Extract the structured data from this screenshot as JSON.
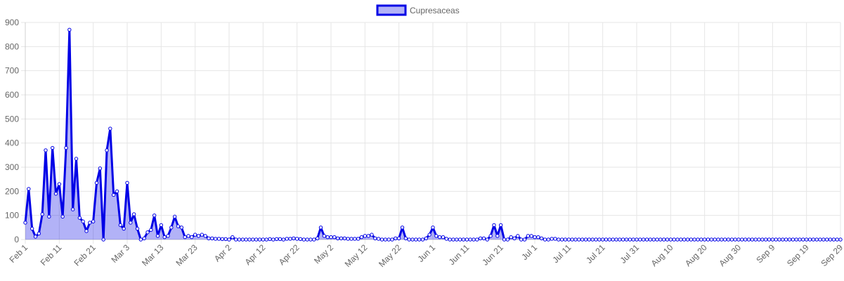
{
  "chart_data": {
    "type": "area",
    "title": "",
    "xlabel": "",
    "ylabel": "",
    "ylim": [
      0,
      900
    ],
    "yticks": [
      0,
      100,
      200,
      300,
      400,
      500,
      600,
      700,
      800,
      900
    ],
    "xtick_labels": [
      "Feb 1",
      "Feb 11",
      "Feb 21",
      "Mar 3",
      "Mar 13",
      "Mar 23",
      "Apr 2",
      "Apr 12",
      "Apr 22",
      "May 2",
      "May 12",
      "May 22",
      "Jun 1",
      "Jun 11",
      "Jun 21",
      "Jul 1",
      "Jul 11",
      "Jul 21",
      "Jul 31",
      "Aug 10",
      "Aug 20",
      "Aug 30",
      "Sep 9",
      "Sep 19",
      "Sep 29"
    ],
    "x_start": "Feb 1",
    "x_end": "Sep 29",
    "grid": true,
    "legend_position": "top",
    "series": [
      {
        "name": "Cupresaceas",
        "color": "#0000e6",
        "fill": "rgba(0,0,230,0.3)",
        "values": [
          70,
          210,
          45,
          12,
          25,
          105,
          370,
          95,
          380,
          190,
          230,
          95,
          380,
          870,
          125,
          335,
          90,
          75,
          35,
          70,
          75,
          235,
          295,
          0,
          370,
          460,
          185,
          200,
          60,
          45,
          235,
          70,
          105,
          45,
          0,
          5,
          30,
          40,
          100,
          15,
          60,
          10,
          15,
          50,
          95,
          55,
          50,
          10,
          15,
          10,
          20,
          15,
          20,
          15,
          5,
          5,
          3,
          3,
          2,
          2,
          0,
          10,
          0,
          0,
          0,
          0,
          0,
          0,
          0,
          0,
          0,
          0,
          2,
          0,
          2,
          2,
          0,
          3,
          3,
          5,
          3,
          2,
          0,
          0,
          0,
          0,
          5,
          50,
          15,
          10,
          10,
          10,
          5,
          5,
          5,
          3,
          3,
          3,
          3,
          10,
          15,
          15,
          20,
          5,
          3,
          0,
          0,
          0,
          0,
          5,
          5,
          50,
          5,
          0,
          0,
          0,
          0,
          0,
          5,
          20,
          50,
          15,
          10,
          10,
          3,
          0,
          0,
          0,
          0,
          0,
          0,
          0,
          0,
          0,
          5,
          5,
          0,
          15,
          60,
          15,
          60,
          0,
          0,
          10,
          5,
          15,
          0,
          0,
          15,
          15,
          10,
          10,
          5,
          0,
          0,
          3,
          3,
          0,
          0,
          0,
          0,
          0,
          0,
          0,
          0,
          0,
          0,
          0,
          0,
          0,
          0,
          0,
          0,
          0,
          0,
          0,
          0,
          0,
          0,
          0,
          0,
          0,
          0,
          0,
          0,
          0,
          0,
          0,
          0,
          0,
          0,
          0,
          0,
          0,
          0,
          0,
          0,
          0,
          0,
          0,
          0,
          0,
          0,
          0,
          0,
          0,
          0,
          0,
          0,
          0,
          0,
          0,
          0,
          0,
          0,
          0,
          0,
          0,
          0,
          0,
          0,
          0,
          0,
          0,
          0,
          0,
          0,
          0,
          0,
          0,
          0,
          0,
          0,
          0,
          0,
          0,
          0,
          0,
          0,
          0,
          0
        ]
      }
    ]
  }
}
